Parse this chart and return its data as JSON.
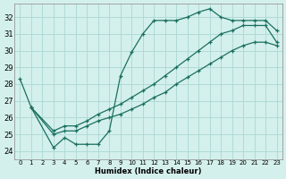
{
  "xlabel": "Humidex (Indice chaleur)",
  "bg_color": "#d4f0ec",
  "grid_color": "#aad8d3",
  "line_color": "#1a7060",
  "xlim": [
    -0.5,
    23.5
  ],
  "ylim": [
    23.5,
    32.8
  ],
  "xticks": [
    0,
    1,
    2,
    3,
    4,
    5,
    6,
    7,
    8,
    9,
    10,
    11,
    12,
    13,
    14,
    15,
    16,
    17,
    18,
    19,
    20,
    21,
    22,
    23
  ],
  "yticks": [
    24,
    25,
    26,
    27,
    28,
    29,
    30,
    31,
    32
  ],
  "line1_x": [
    0,
    1,
    3,
    4,
    5,
    6,
    7,
    8,
    9,
    10,
    11,
    12,
    13,
    14,
    15,
    16,
    17,
    18,
    19,
    20,
    21,
    22,
    23
  ],
  "line1_y": [
    28.3,
    26.6,
    24.2,
    24.8,
    24.4,
    24.4,
    24.4,
    25.2,
    28.5,
    29.9,
    31.0,
    31.8,
    31.8,
    31.8,
    32.0,
    32.3,
    32.5,
    32.0,
    31.8,
    31.8,
    31.8,
    31.8,
    31.2
  ],
  "line2_x": [
    1,
    3,
    4,
    5,
    6,
    7,
    8,
    9,
    10,
    11,
    12,
    13,
    14,
    15,
    16,
    17,
    18,
    19,
    20,
    21,
    22,
    23
  ],
  "line2_y": [
    26.6,
    25.2,
    25.5,
    25.5,
    25.8,
    26.2,
    26.5,
    26.8,
    27.2,
    27.6,
    28.0,
    28.5,
    29.0,
    29.5,
    30.0,
    30.5,
    31.0,
    31.2,
    31.5,
    31.5,
    31.5,
    30.5
  ],
  "line3_x": [
    1,
    3,
    4,
    5,
    6,
    7,
    8,
    9,
    10,
    11,
    12,
    13,
    14,
    15,
    16,
    17,
    18,
    19,
    20,
    21,
    22,
    23
  ],
  "line3_y": [
    26.6,
    25.0,
    25.2,
    25.2,
    25.5,
    25.8,
    26.0,
    26.2,
    26.5,
    26.8,
    27.2,
    27.5,
    28.0,
    28.4,
    28.8,
    29.2,
    29.6,
    30.0,
    30.3,
    30.5,
    30.5,
    30.3
  ]
}
